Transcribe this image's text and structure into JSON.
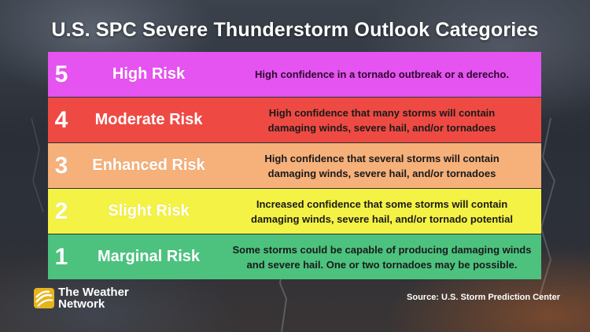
{
  "title": "U.S. SPC Severe Thunderstorm Outlook Categories",
  "categories": [
    {
      "level": "5",
      "name": "High Risk",
      "description_lines": [
        "High confidence in a tornado outbreak or a derecho."
      ],
      "color": "#e553f0"
    },
    {
      "level": "4",
      "name": "Moderate Risk",
      "description_lines": [
        "High confidence that many storms will contain",
        "damaging winds, severe hail, and/or tornadoes"
      ],
      "color": "#ee4a43"
    },
    {
      "level": "3",
      "name": "Enhanced Risk",
      "description_lines": [
        "High confidence that several storms will contain",
        "damaging winds, severe hail, and/or tornadoes"
      ],
      "color": "#f6b07a"
    },
    {
      "level": "2",
      "name": "Slight Risk",
      "description_lines": [
        "Increased confidence that some storms will contain",
        "damaging winds, severe hail, and/or tornado potential"
      ],
      "color": "#f4f244"
    },
    {
      "level": "1",
      "name": "Marginal Risk",
      "description_lines": [
        "Some storms could be capable of producing damaging winds",
        "and severe hail. One or two tornadoes may be possible."
      ],
      "color": "#4cc27e"
    }
  ],
  "brand": {
    "line1": "The Weather",
    "line2": "Network",
    "logo_icon": "weather-network-logo-icon",
    "logo_color": "#e7b41e"
  },
  "source": "Source: U.S. Storm Prediction Center"
}
